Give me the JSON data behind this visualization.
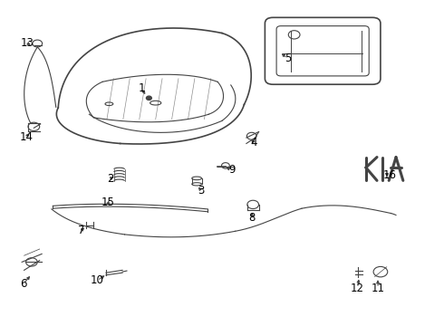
{
  "background_color": "#ffffff",
  "line_color": "#444444",
  "label_color": "#000000",
  "label_fontsize": 8.5,
  "figsize": [
    4.9,
    3.6
  ],
  "dpi": 100
}
